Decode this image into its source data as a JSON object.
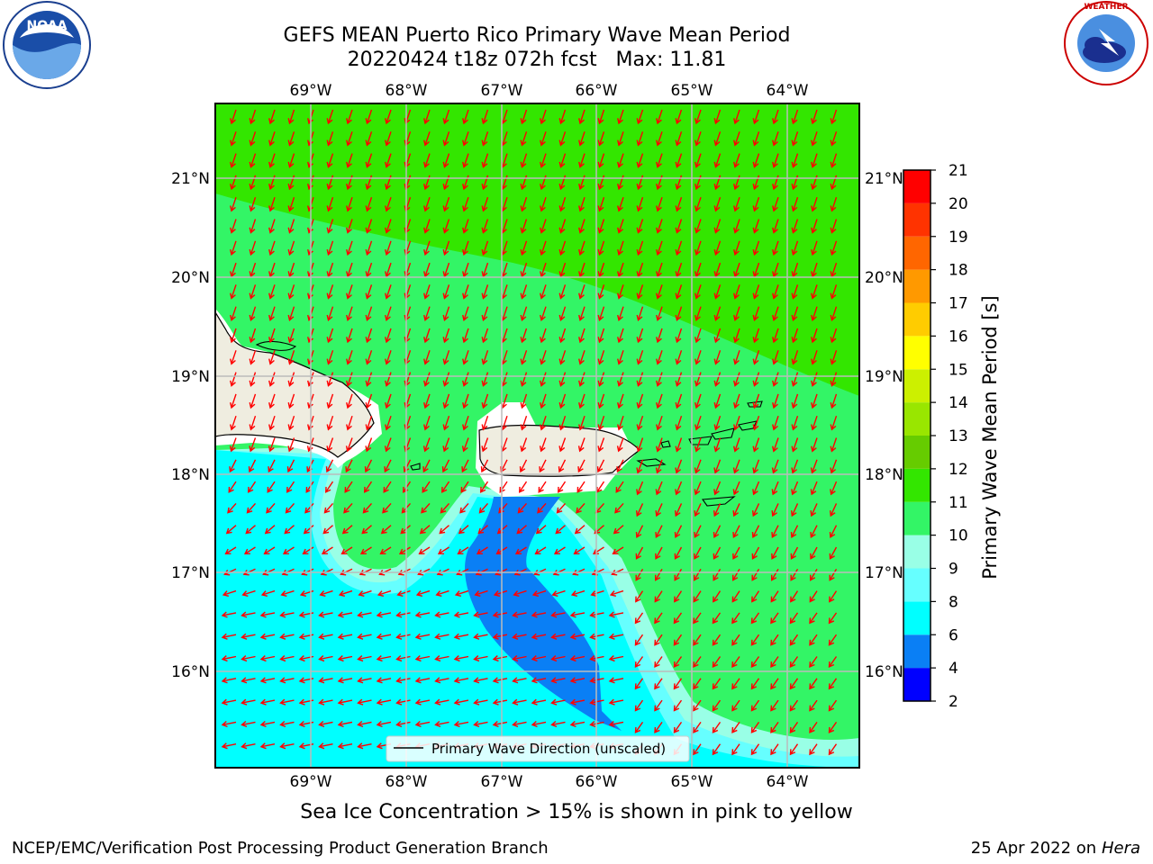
{
  "title_line1": "GEFS MEAN Puerto Rico Primary Wave Mean Period",
  "title_line2": "20220424 t18z 072h fcst   Max: 11.81",
  "lon_labels": [
    "69°W",
    "68°W",
    "67°W",
    "66°W",
    "65°W",
    "64°W"
  ],
  "lat_labels": [
    "21°N",
    "20°N",
    "19°N",
    "18°N",
    "17°N",
    "16°N"
  ],
  "legend_label": "Primary Wave Direction (unscaled)",
  "colorbar": {
    "label": "Primary Wave Mean Period [s]",
    "ticks": [
      "2",
      "4",
      "6",
      "8",
      "9",
      "10",
      "11",
      "12",
      "13",
      "14",
      "15",
      "16",
      "17",
      "18",
      "19",
      "20",
      "21"
    ],
    "colors": [
      "#0000ff",
      "#0a7ff5",
      "#00ffff",
      "#66ffff",
      "#99ffe6",
      "#33f566",
      "#33e600",
      "#66cc00",
      "#99e600",
      "#ccf000",
      "#ffff00",
      "#ffcc00",
      "#ff9900",
      "#ff6600",
      "#ff3300",
      "#ff0000"
    ]
  },
  "subtitle": "Sea Ice Concentration > 15% is shown in pink to yellow",
  "footer_left": "NCEP/EMC/Verification Post Processing Product Generation Branch",
  "footer_right_prefix": "25 Apr 2022 on ",
  "footer_right_host": "Hera",
  "colors": {
    "land": "#efede0",
    "wave_arrow": "#ff0000",
    "grid": "#bbbbbb"
  }
}
